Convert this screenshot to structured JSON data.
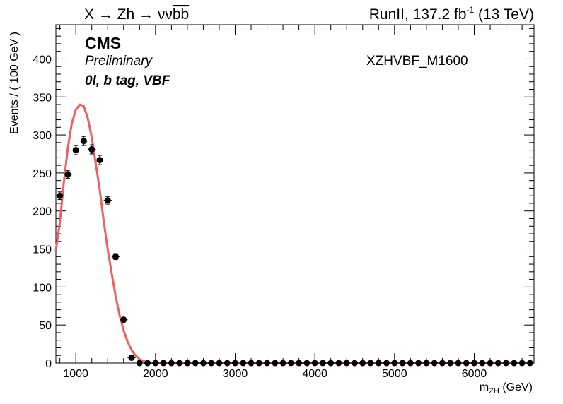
{
  "header": {
    "process_prefix": "X → Zh → νν",
    "process_bb": "bb",
    "lumi_prefix": "RunII, 137.2 fb",
    "lumi_exp": "-1",
    "energy": "(13 TeV)"
  },
  "labels": {
    "cms": "CMS",
    "preliminary": "Preliminary",
    "category": "0l, b tag, VBF",
    "sample": "XZHVBF_M1600"
  },
  "chart_data": {
    "type": "scatter",
    "ylabel": "Events / ( 100 GeV )",
    "xlabel_main": "m",
    "xlabel_sub": "ZH",
    "xlabel_unit": "(GeV)",
    "xlim": [
      750,
      6750
    ],
    "ylim": [
      0,
      445
    ],
    "x_ticks": [
      1000,
      2000,
      3000,
      4000,
      5000,
      6000
    ],
    "y_ticks": [
      0,
      50,
      100,
      150,
      200,
      250,
      300,
      350,
      400
    ],
    "grid": false,
    "series": [
      {
        "kind": "points",
        "color": "#000000",
        "x": [
          800,
          900,
          1000,
          1100,
          1200,
          1300,
          1400,
          1500,
          1600,
          1700,
          1800,
          1900,
          2000,
          2100,
          2200,
          2300,
          2400,
          2500,
          2600,
          2700,
          2800,
          2900,
          3000,
          3100,
          3200,
          3300,
          3400,
          3500,
          3600,
          3700,
          3800,
          3900,
          4000,
          4100,
          4200,
          4300,
          4400,
          4500,
          4600,
          4700,
          4800,
          4900,
          5000,
          5100,
          5200,
          5300,
          5400,
          5500,
          5600,
          5700,
          5800,
          5900,
          6000,
          6100,
          6200,
          6300,
          6400,
          6500,
          6600,
          6700
        ],
        "y": [
          220,
          248,
          280,
          292,
          281,
          267,
          214,
          140,
          57,
          7,
          0,
          0,
          0,
          0,
          0,
          0,
          0,
          0,
          0,
          0,
          0,
          0,
          0,
          0,
          0,
          0,
          0,
          0,
          0,
          0,
          0,
          0,
          0,
          0,
          0,
          0,
          0,
          0,
          0,
          0,
          0,
          0,
          0,
          0,
          0,
          0,
          0,
          0,
          0,
          0,
          0,
          0,
          0,
          0,
          0,
          0,
          0,
          0,
          0,
          0
        ],
        "yerr": [
          5,
          5,
          6,
          6,
          6,
          6,
          5,
          4,
          3,
          1,
          0,
          0,
          0,
          0,
          0,
          0,
          0,
          0,
          0,
          0,
          0,
          0,
          0,
          0,
          0,
          0,
          0,
          0,
          0,
          0,
          0,
          0,
          0,
          0,
          0,
          0,
          0,
          0,
          0,
          0,
          0,
          0,
          0,
          0,
          0,
          0,
          0,
          0,
          0,
          0,
          0,
          0,
          0,
          0,
          0,
          0,
          0,
          0,
          0,
          0
        ]
      },
      {
        "kind": "curve",
        "color": "#f06060",
        "x": [
          750,
          800,
          850,
          900,
          950,
          1000,
          1050,
          1100,
          1150,
          1200,
          1250,
          1300,
          1350,
          1400,
          1450,
          1500,
          1550,
          1600,
          1650,
          1700,
          1750,
          1800,
          1850,
          1900,
          1950,
          2000,
          2100,
          2500,
          3000,
          4000,
          5000,
          6000,
          6750
        ],
        "y": [
          148,
          185,
          238,
          283,
          315,
          333,
          340,
          338,
          322,
          297,
          263,
          228,
          187,
          150,
          118,
          88,
          63,
          43,
          28,
          17,
          10,
          5,
          2.5,
          1,
          0.4,
          0.1,
          0,
          0,
          0,
          0,
          0,
          0,
          0
        ]
      }
    ]
  }
}
